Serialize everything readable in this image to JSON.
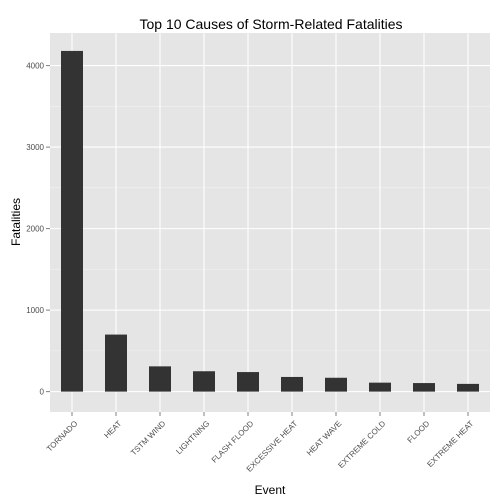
{
  "chart_data": {
    "type": "bar",
    "title": "Top 10 Causes of Storm-Related Fatalities",
    "xlabel": "Event",
    "ylabel": "Fatalities",
    "categories": [
      "TORNADO",
      "HEAT",
      "TSTM WIND",
      "LIGHTNING",
      "FLASH FLOOD",
      "EXCESSIVE HEAT",
      "HEAT WAVE",
      "EXTREME COLD",
      "FLOOD",
      "EXTREME HEAT"
    ],
    "values": [
      4180,
      700,
      310,
      250,
      240,
      180,
      170,
      110,
      105,
      95
    ],
    "ylim": [
      -250,
      4400
    ],
    "yticks": [
      0,
      1000,
      2000,
      3000,
      4000
    ],
    "grid": true,
    "legend": "none",
    "colors": {
      "panel": "#e5e5e5",
      "grid_major": "#ffffff",
      "grid_minor": "#f2f2f2",
      "bar": "#333333"
    }
  }
}
